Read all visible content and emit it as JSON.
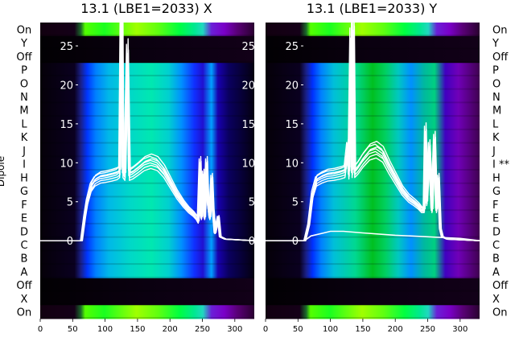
{
  "chart_data": [
    {
      "type": "heatmap",
      "title": "13.1 (LBE1=2033) X",
      "ylabel": "Dipole",
      "row_labels": [
        "On",
        "Y",
        "Off",
        "P",
        "O",
        "N",
        "M",
        "L",
        "K",
        "J",
        "I",
        "H",
        "G",
        "F",
        "E",
        "D",
        "C",
        "B",
        "A",
        "Off",
        "X",
        "On"
      ],
      "xlim": [
        0,
        330
      ],
      "x_ticks": [
        0,
        50,
        100,
        150,
        200,
        250,
        300
      ],
      "trace_ylim": [
        -10,
        28
      ],
      "trace_yticks": [
        0,
        5,
        10,
        15,
        20,
        25
      ],
      "trace_color": "#ffffff",
      "trace_profile": [
        [
          0,
          0
        ],
        [
          63,
          0
        ],
        [
          68,
          3
        ],
        [
          72,
          5
        ],
        [
          78,
          7
        ],
        [
          84,
          7.8
        ],
        [
          92,
          8.2
        ],
        [
          100,
          8.3
        ],
        [
          110,
          8.5
        ],
        [
          118,
          8.7
        ],
        [
          122,
          9
        ],
        [
          125,
          35
        ],
        [
          127,
          9
        ],
        [
          130,
          8.6
        ],
        [
          134,
          24
        ],
        [
          137,
          8.6
        ],
        [
          142,
          8.8
        ],
        [
          150,
          9.3
        ],
        [
          160,
          10
        ],
        [
          170,
          10.3
        ],
        [
          180,
          10
        ],
        [
          190,
          9
        ],
        [
          200,
          7.5
        ],
        [
          210,
          6
        ],
        [
          220,
          4.8
        ],
        [
          228,
          4
        ],
        [
          235,
          3.5
        ],
        [
          240,
          3
        ],
        [
          243,
          2.5
        ],
        [
          246,
          10
        ],
        [
          248,
          3
        ],
        [
          251,
          8.5
        ],
        [
          253,
          3
        ],
        [
          256,
          10
        ],
        [
          258,
          5
        ],
        [
          261,
          3
        ],
        [
          264,
          8
        ],
        [
          266,
          4
        ],
        [
          269,
          1
        ],
        [
          274,
          3
        ],
        [
          277,
          0.5
        ],
        [
          285,
          0.2
        ],
        [
          330,
          0
        ]
      ]
    },
    {
      "type": "heatmap",
      "title": "13.1 (LBE1=2033) Y",
      "row_labels": [
        "On",
        "Y",
        "Off",
        "P",
        "O",
        "N",
        "M",
        "L",
        "K",
        "J",
        "I **",
        "H",
        "G",
        "F",
        "E",
        "D",
        "C",
        "B",
        "A",
        "Off",
        "X",
        "On"
      ],
      "xlim": [
        0,
        330
      ],
      "x_ticks": [
        0,
        50,
        100,
        150,
        200,
        250,
        300
      ],
      "trace_ylim": [
        -10,
        28
      ],
      "trace_yticks": [
        0,
        5,
        10,
        15,
        20,
        25
      ],
      "trace_color": "#ffffff",
      "trace_profile": [
        [
          0,
          0
        ],
        [
          60,
          0
        ],
        [
          66,
          2
        ],
        [
          72,
          6
        ],
        [
          78,
          7.8
        ],
        [
          86,
          8.2
        ],
        [
          95,
          8.5
        ],
        [
          105,
          8.6
        ],
        [
          115,
          8.8
        ],
        [
          122,
          9
        ],
        [
          126,
          12
        ],
        [
          128,
          8.8
        ],
        [
          131,
          26
        ],
        [
          133,
          9
        ],
        [
          135,
          27
        ],
        [
          137,
          9
        ],
        [
          142,
          9.5
        ],
        [
          150,
          10.5
        ],
        [
          160,
          11.5
        ],
        [
          170,
          11.8
        ],
        [
          180,
          11.2
        ],
        [
          190,
          9.5
        ],
        [
          200,
          8
        ],
        [
          210,
          6.5
        ],
        [
          220,
          5.5
        ],
        [
          228,
          5
        ],
        [
          235,
          4.5
        ],
        [
          240,
          4
        ],
        [
          244,
          4
        ],
        [
          246,
          14
        ],
        [
          248,
          5
        ],
        [
          252,
          12
        ],
        [
          256,
          4
        ],
        [
          260,
          13
        ],
        [
          263,
          4
        ],
        [
          266,
          8
        ],
        [
          269,
          1.5
        ],
        [
          272,
          0.5
        ],
        [
          280,
          0.2
        ],
        [
          330,
          0
        ]
      ],
      "low_trace_profile": [
        [
          0,
          0
        ],
        [
          60,
          0
        ],
        [
          70,
          0.6
        ],
        [
          90,
          1
        ],
        [
          100,
          1.2
        ],
        [
          120,
          1.2
        ],
        [
          150,
          1
        ],
        [
          200,
          0.7
        ],
        [
          250,
          0.5
        ],
        [
          300,
          0.3
        ],
        [
          330,
          0
        ]
      ]
    }
  ]
}
